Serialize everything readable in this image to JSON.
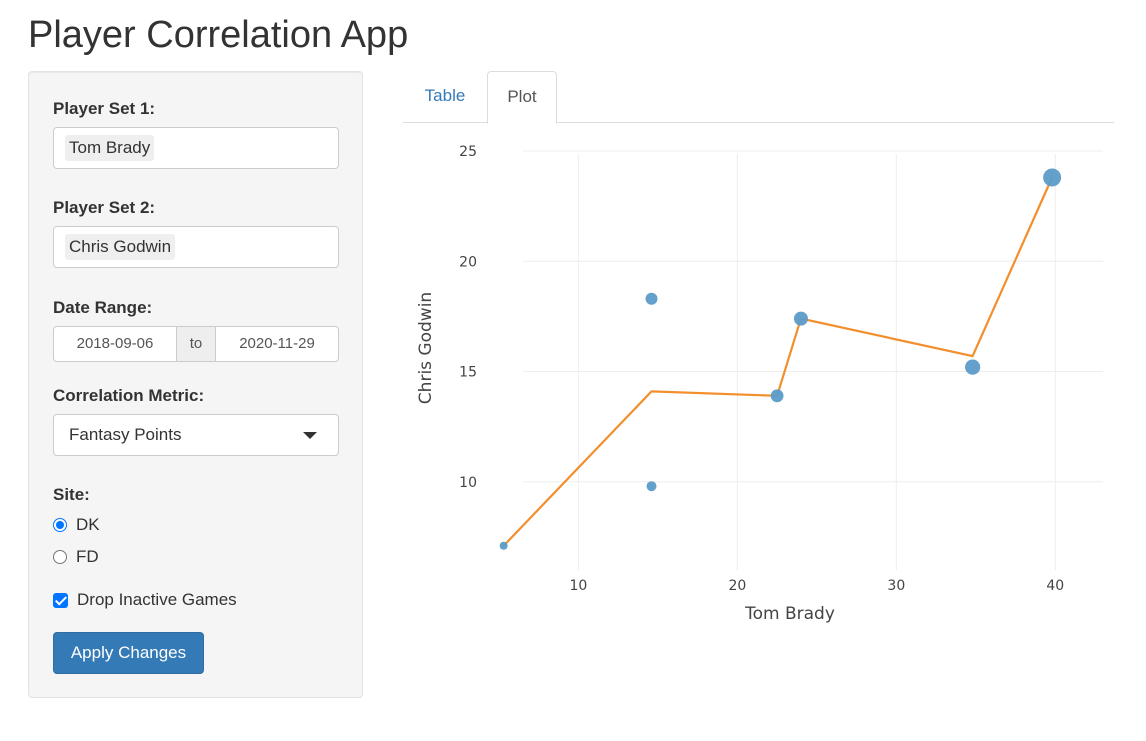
{
  "app": {
    "title": "Player Correlation App"
  },
  "sidebar": {
    "player_set_1": {
      "label": "Player Set 1:",
      "value": "Tom Brady"
    },
    "player_set_2": {
      "label": "Player Set 2:",
      "value": "Chris Godwin"
    },
    "date_range": {
      "label": "Date Range:",
      "start": "2018-09-06",
      "separator": "to",
      "end": "2020-11-29"
    },
    "metric": {
      "label": "Correlation Metric:",
      "value": "Fantasy Points"
    },
    "site": {
      "label": "Site:",
      "options": [
        {
          "label": "DK",
          "selected": true
        },
        {
          "label": "FD",
          "selected": false
        }
      ]
    },
    "drop_inactive": {
      "label": "Drop Inactive Games",
      "checked": true
    },
    "apply_label": "Apply Changes"
  },
  "tabs": [
    {
      "label": "Table",
      "active": false
    },
    {
      "label": "Plot",
      "active": true
    }
  ],
  "colors": {
    "point": "#5b9bc8",
    "line": "#f28e2b",
    "button": "#337ab7"
  },
  "chart_data": {
    "type": "scatter",
    "title": "",
    "xlabel": "Tom Brady",
    "ylabel": "Chris Godwin",
    "xlim": [
      4,
      43
    ],
    "ylim": [
      6,
      25.5
    ],
    "xticks": [
      10,
      20,
      30,
      40
    ],
    "yticks": [
      10,
      15,
      20,
      25
    ],
    "grid": true,
    "points": [
      {
        "x": 5.3,
        "y": 7.1,
        "size": 2
      },
      {
        "x": 14.6,
        "y": 18.3,
        "size": 3
      },
      {
        "x": 14.6,
        "y": 9.8,
        "size": 2.5
      },
      {
        "x": 22.5,
        "y": 13.9,
        "size": 3.2
      },
      {
        "x": 24.0,
        "y": 17.4,
        "size": 3.5
      },
      {
        "x": 34.8,
        "y": 15.2,
        "size": 3.8
      },
      {
        "x": 39.8,
        "y": 23.8,
        "size": 4.5
      }
    ],
    "trend_line": [
      {
        "x": 5.3,
        "y": 7.1
      },
      {
        "x": 14.6,
        "y": 14.1
      },
      {
        "x": 22.5,
        "y": 13.9
      },
      {
        "x": 24.0,
        "y": 17.4
      },
      {
        "x": 34.8,
        "y": 15.7
      },
      {
        "x": 39.8,
        "y": 23.8
      }
    ]
  }
}
